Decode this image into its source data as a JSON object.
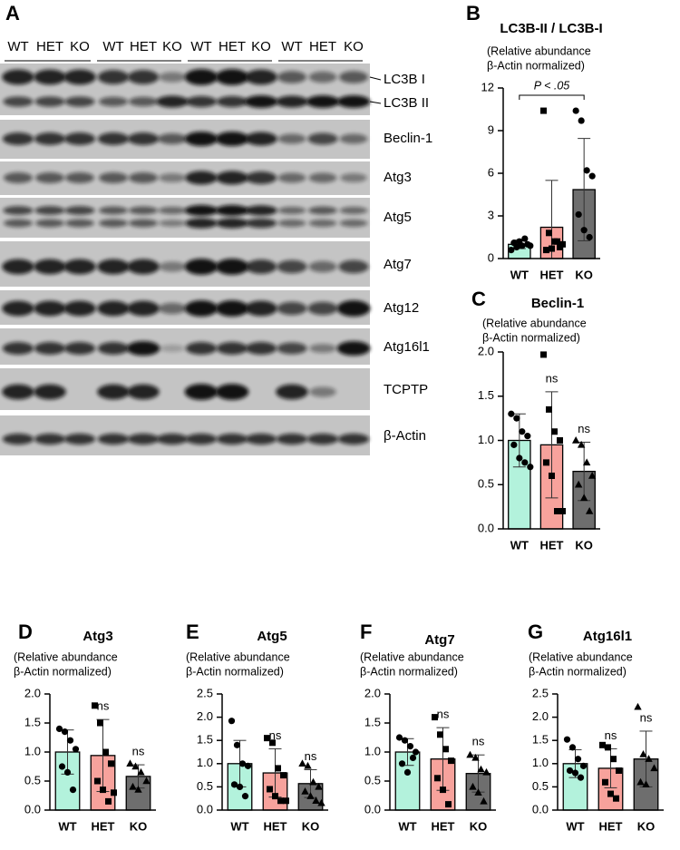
{
  "blot": {
    "panel": "A",
    "lanes": [
      "WT",
      "HET",
      "KO",
      "WT",
      "HET",
      "KO",
      "WT",
      "HET",
      "KO",
      "WT",
      "HET",
      "KO"
    ],
    "proteins": [
      "LC3B I",
      "LC3B II",
      "Beclin-1",
      "Atg3",
      "Atg5",
      "Atg7",
      "Atg12",
      "Atg16l1",
      "TCPTP",
      "β-Actin"
    ]
  },
  "chart_data": [
    {
      "type": "bar",
      "panel": "B",
      "title": "LC3B-II / LC3B-I",
      "subtitle": [
        "(Relative abundance",
        "β-Actin normalized)"
      ],
      "categories": [
        "WT",
        "HET",
        "KO"
      ],
      "colors": [
        "#b3f2dc",
        "#f7a29c",
        "#6e6e6e"
      ],
      "markers": [
        "circle",
        "square",
        "circle"
      ],
      "values": [
        1.0,
        2.2,
        4.85
      ],
      "errors": [
        0.3,
        3.3,
        3.6
      ],
      "points": [
        [
          0.6,
          0.8,
          0.9,
          1.0,
          1.1,
          1.2,
          1.4,
          0.9
        ],
        [
          10.4,
          1.8,
          1.2,
          0.8,
          0.6,
          0.7,
          1.2,
          1.0
        ],
        [
          10.4,
          9.7,
          6.2,
          5.8,
          3.1,
          2.0,
          1.5
        ]
      ],
      "ylim": [
        0,
        12
      ],
      "yticks": [
        0,
        3,
        6,
        9,
        12
      ],
      "significance": [
        {
          "label": "P < .05",
          "groups": [
            "WT",
            "KO"
          ]
        }
      ]
    },
    {
      "type": "bar",
      "panel": "C",
      "title": "Beclin-1",
      "subtitle": [
        "(Relative abundance",
        "β-Actin normalized)"
      ],
      "categories": [
        "WT",
        "HET",
        "KO"
      ],
      "colors": [
        "#b3f2dc",
        "#f7a29c",
        "#6e6e6e"
      ],
      "markers": [
        "circle",
        "square",
        "triangle"
      ],
      "values": [
        1.0,
        0.95,
        0.65
      ],
      "errors": [
        0.3,
        0.6,
        0.33
      ],
      "points": [
        [
          1.3,
          1.25,
          1.1,
          1.05,
          0.95,
          0.8,
          0.75,
          0.7
        ],
        [
          1.97,
          1.35,
          1.1,
          1.0,
          0.75,
          0.6,
          0.2,
          0.2
        ],
        [
          1.0,
          0.95,
          0.75,
          0.6,
          0.5,
          0.35,
          0.2
        ]
      ],
      "ylim": [
        0,
        2
      ],
      "yticks": [
        {
          "value": 0,
          "label": "0.0"
        },
        0.5,
        {
          "value": 1,
          "label": "1.0"
        },
        1.5,
        {
          "value": 2,
          "label": "2.0"
        }
      ],
      "labels_above": [
        null,
        "ns",
        "ns"
      ]
    },
    {
      "type": "bar",
      "panel": "D",
      "title": "Atg3",
      "subtitle": [
        "(Relative abundance",
        " β-Actin normalized)"
      ],
      "categories": [
        "WT",
        "HET",
        "KO"
      ],
      "colors": [
        "#b3f2dc",
        "#f7a29c",
        "#6e6e6e"
      ],
      "markers": [
        "circle",
        "square",
        "triangle"
      ],
      "values": [
        1.0,
        0.94,
        0.58
      ],
      "errors": [
        0.38,
        0.62,
        0.2
      ],
      "points": [
        [
          1.4,
          1.35,
          1.2,
          1.05,
          0.75,
          0.65,
          0.35
        ],
        [
          1.8,
          1.5,
          1.0,
          0.8,
          0.5,
          0.35,
          0.15,
          0.3
        ],
        [
          0.8,
          0.75,
          0.65,
          0.5,
          0.4,
          0.35
        ]
      ],
      "ylim": [
        0,
        2
      ],
      "yticks": [
        {
          "value": 0,
          "label": "0.0"
        },
        0.5,
        {
          "value": 1,
          "label": "1.0"
        },
        1.5,
        {
          "value": 2,
          "label": "2.0"
        }
      ],
      "labels_above": [
        null,
        "ns",
        "ns"
      ]
    },
    {
      "type": "bar",
      "panel": "E",
      "title": "Atg5",
      "subtitle": [
        "(Relative abundance",
        " β-Actin normalized)"
      ],
      "categories": [
        "WT",
        "HET",
        "KO"
      ],
      "colors": [
        "#b3f2dc",
        "#f7a29c",
        "#6e6e6e"
      ],
      "markers": [
        "circle",
        "square",
        "triangle"
      ],
      "values": [
        1.0,
        0.8,
        0.57
      ],
      "errors": [
        0.5,
        0.52,
        0.3
      ],
      "points": [
        [
          1.92,
          1.4,
          1.0,
          0.95,
          0.55,
          0.5,
          0.3
        ],
        [
          1.55,
          1.45,
          0.9,
          0.75,
          0.45,
          0.3,
          0.2,
          0.2
        ],
        [
          1.0,
          0.95,
          0.6,
          0.5,
          0.4,
          0.3,
          0.2,
          0.15
        ]
      ],
      "ylim": [
        0,
        2.5
      ],
      "yticks": [
        {
          "value": 0,
          "label": "0.0"
        },
        0.5,
        {
          "value": 1,
          "label": "1.0"
        },
        1.5,
        {
          "value": 2,
          "label": "2.0"
        },
        2.5
      ],
      "labels_above": [
        null,
        "ns",
        "ns"
      ]
    },
    {
      "type": "bar",
      "panel": "F",
      "title": "Atg7",
      "subtitle": [
        "(Relative abundance",
        "β-Actin normalized)"
      ],
      "categories": [
        "WT",
        "HET",
        "KO"
      ],
      "colors": [
        "#b3f2dc",
        "#f7a29c",
        "#6e6e6e"
      ],
      "markers": [
        "circle",
        "square",
        "triangle"
      ],
      "values": [
        1.0,
        0.88,
        0.63
      ],
      "errors": [
        0.23,
        0.54,
        0.32
      ],
      "points": [
        [
          1.25,
          1.2,
          1.1,
          1.0,
          0.8,
          0.65,
          0.9
        ],
        [
          1.6,
          1.3,
          1.05,
          0.85,
          0.55,
          0.35,
          0.1
        ],
        [
          0.95,
          0.9,
          0.7,
          0.65,
          0.4,
          0.3,
          0.15
        ]
      ],
      "ylim": [
        0,
        2
      ],
      "yticks": [
        {
          "value": 0,
          "label": "0.0"
        },
        0.5,
        {
          "value": 1,
          "label": "1.0"
        },
        1.5,
        {
          "value": 2,
          "label": "2.0"
        }
      ],
      "labels_above": [
        null,
        "ns",
        "ns"
      ]
    },
    {
      "type": "bar",
      "panel": "G",
      "title": "Atg16l1",
      "subtitle": [
        "(Relative abundance",
        " β-Actin normalized)"
      ],
      "categories": [
        "WT",
        "HET",
        "KO"
      ],
      "colors": [
        "#b3f2dc",
        "#f7a29c",
        "#6e6e6e"
      ],
      "markers": [
        "circle",
        "square",
        "triangle"
      ],
      "values": [
        1.0,
        0.9,
        1.1
      ],
      "errors": [
        0.3,
        0.42,
        0.6
      ],
      "points": [
        [
          1.52,
          1.35,
          1.1,
          0.95,
          0.85,
          0.8,
          0.7
        ],
        [
          1.4,
          1.35,
          1.1,
          0.85,
          0.6,
          0.35,
          0.25
        ],
        [
          2.22,
          1.2,
          1.1,
          0.9,
          0.6,
          0.55
        ]
      ],
      "ylim": [
        0,
        2.5
      ],
      "yticks": [
        {
          "value": 0,
          "label": "0.0"
        },
        0.5,
        {
          "value": 1,
          "label": "1.0"
        },
        1.5,
        {
          "value": 2,
          "label": "2.0"
        },
        2.5
      ],
      "labels_above": [
        null,
        "ns",
        "ns"
      ]
    }
  ]
}
